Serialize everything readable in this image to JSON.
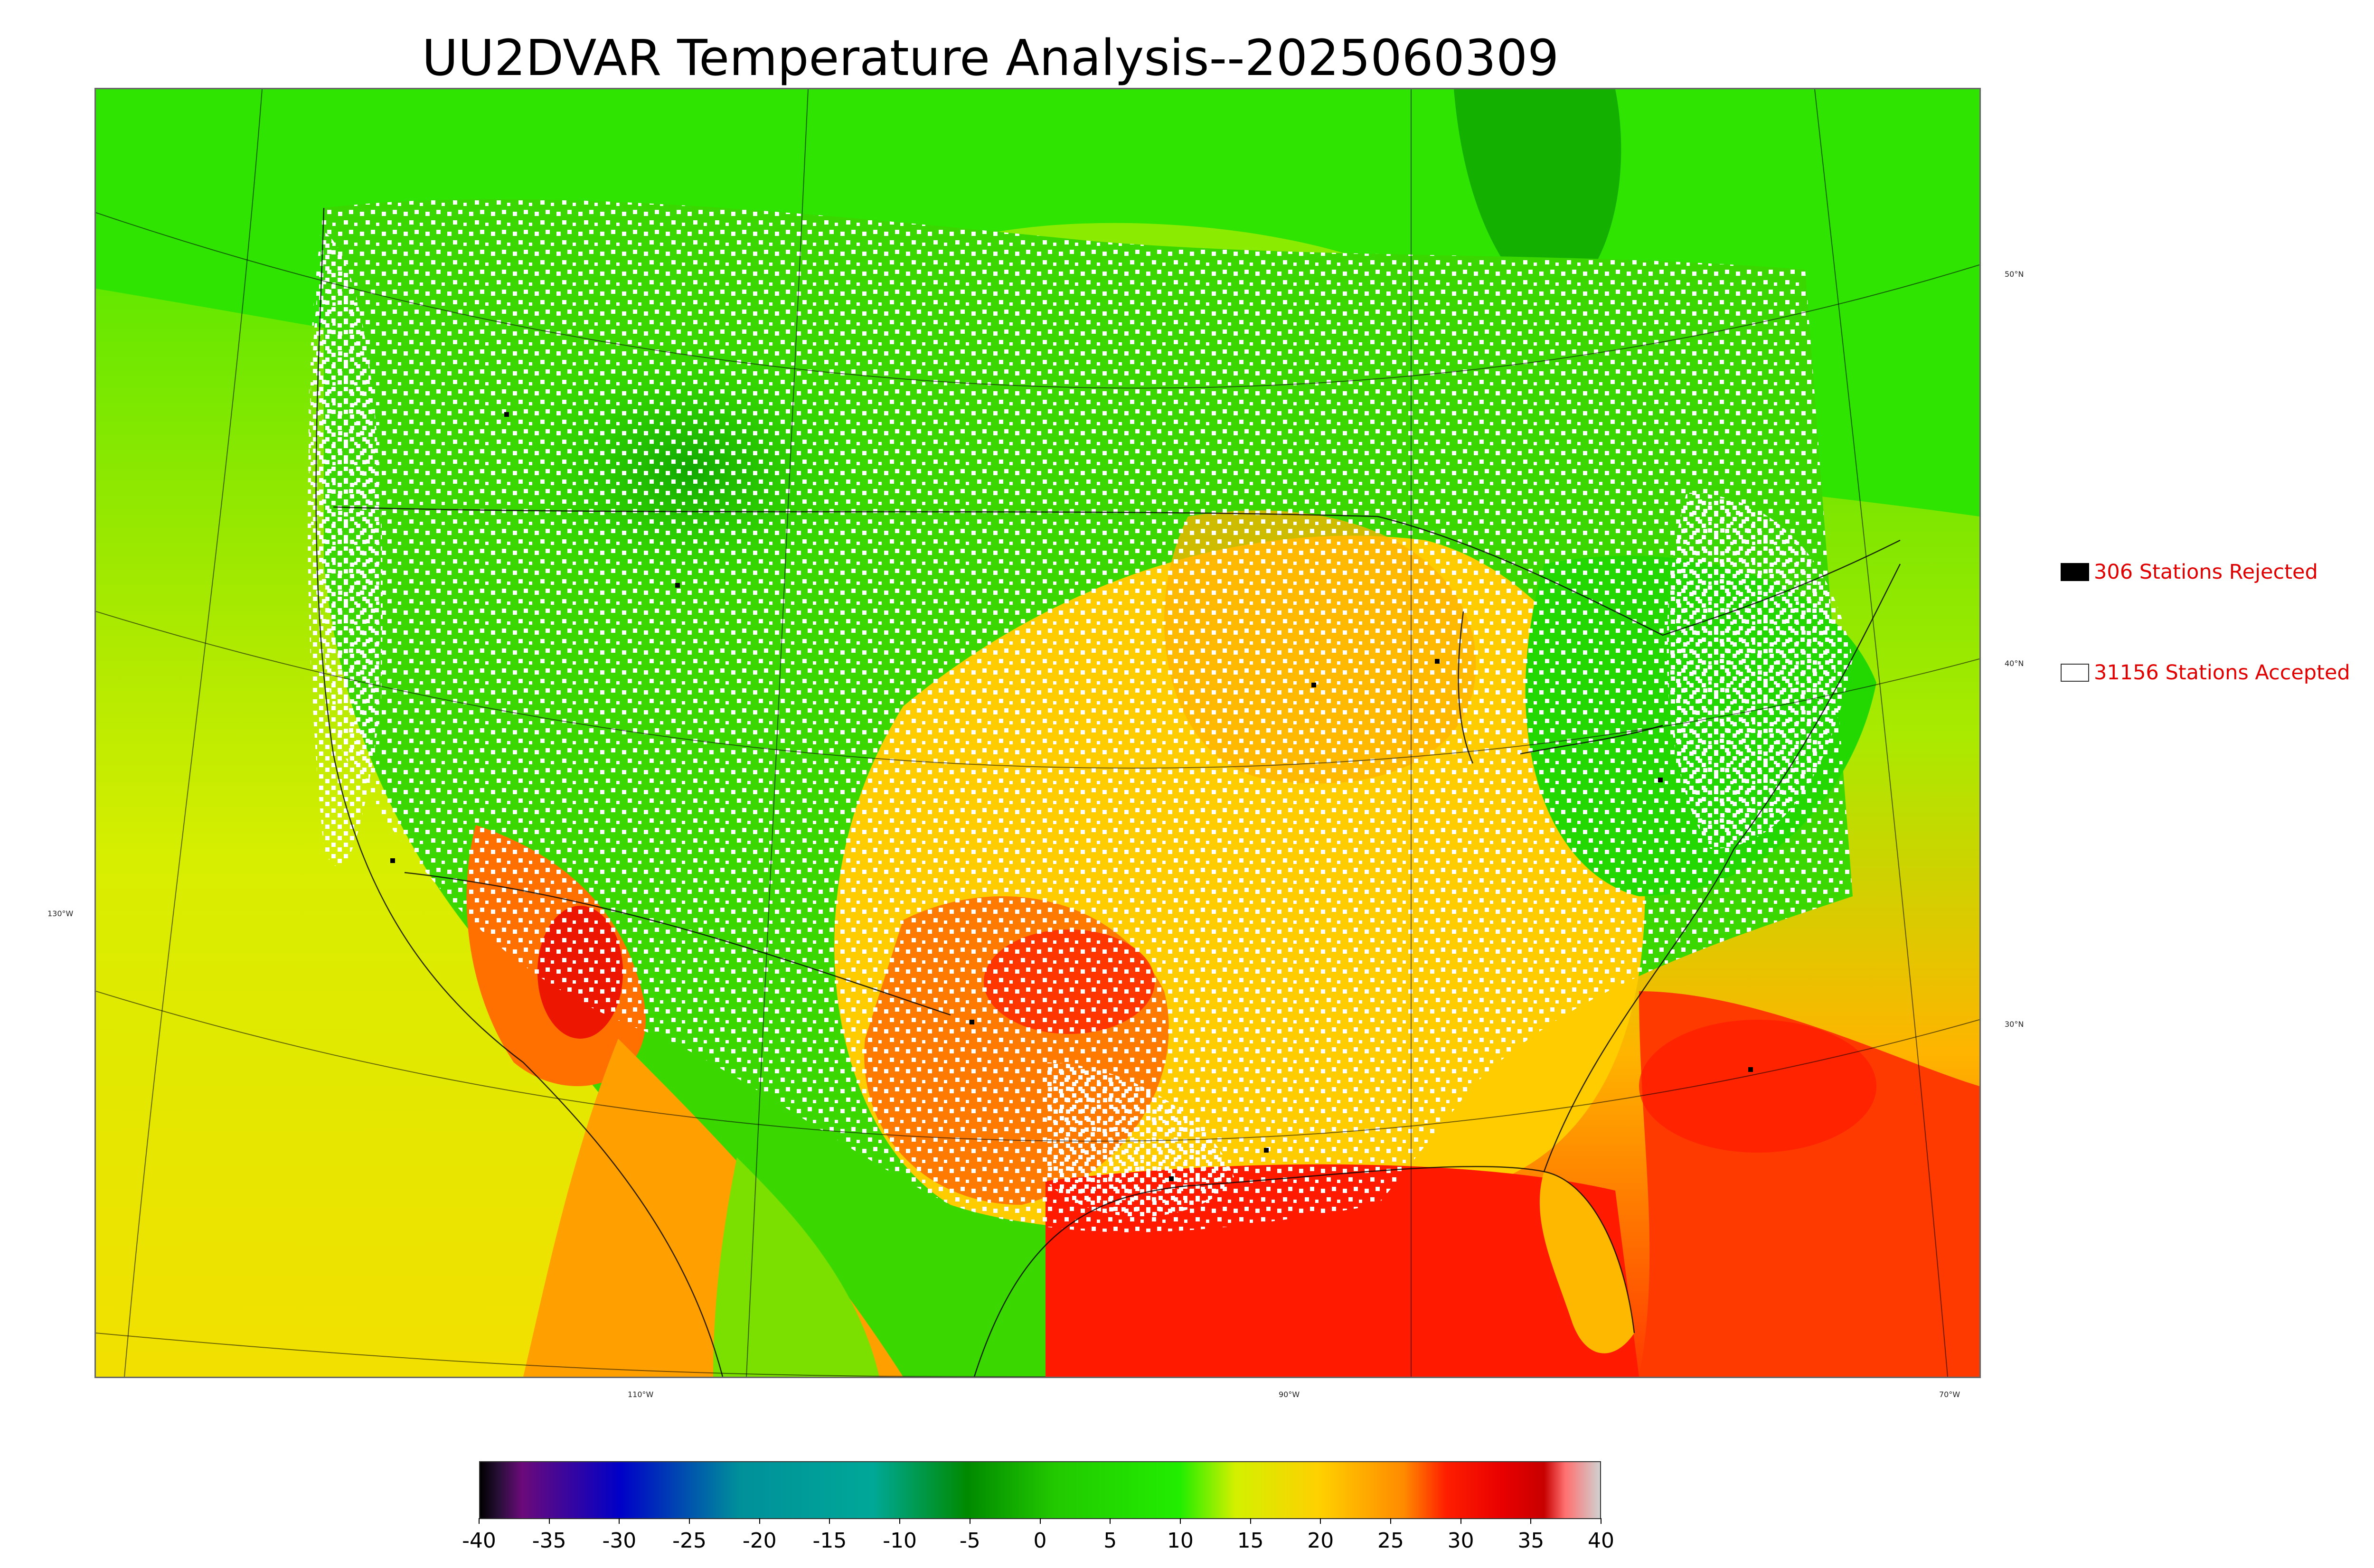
{
  "title": "UU2DVAR Temperature Analysis--2025060309",
  "map": {
    "lat_labels": [
      "50°N",
      "40°N",
      "30°N"
    ],
    "lon_labels": [
      "130°W",
      "110°W",
      "90°W",
      "70°W"
    ]
  },
  "legend": {
    "rejected": {
      "text": "306 Stations Rejected",
      "box_color": "#000000"
    },
    "accepted": {
      "text": "31156 Stations Accepted",
      "box_color": "#ffffff"
    },
    "text_color": "#e00000"
  },
  "colorbar": {
    "tick_labels": [
      "-40",
      "-35",
      "-30",
      "-25",
      "-20",
      "-15",
      "-10",
      "-5",
      "0",
      "5",
      "10",
      "15",
      "20",
      "25",
      "30",
      "35",
      "40"
    ],
    "range": [
      -40,
      40
    ],
    "color_stops": [
      {
        "v": -40,
        "c": "#000000"
      },
      {
        "v": -38.6,
        "c": "#2a0f3a"
      },
      {
        "v": -37,
        "c": "#6b0a7a"
      },
      {
        "v": -30,
        "c": "#0000c8"
      },
      {
        "v": -21.5,
        "c": "#00909a"
      },
      {
        "v": -12,
        "c": "#00a898"
      },
      {
        "v": -5.2,
        "c": "#008a00"
      },
      {
        "v": 1,
        "c": "#22c800"
      },
      {
        "v": 10,
        "c": "#22ee00"
      },
      {
        "v": 14,
        "c": "#d4f000"
      },
      {
        "v": 20,
        "c": "#ffd000"
      },
      {
        "v": 26,
        "c": "#ff8a00"
      },
      {
        "v": 29,
        "c": "#ff1e00"
      },
      {
        "v": 33,
        "c": "#e80000"
      },
      {
        "v": 36,
        "c": "#c80000"
      },
      {
        "v": 37.5,
        "c": "#ff7070"
      },
      {
        "v": 40,
        "c": "#d0d0d0"
      }
    ]
  }
}
